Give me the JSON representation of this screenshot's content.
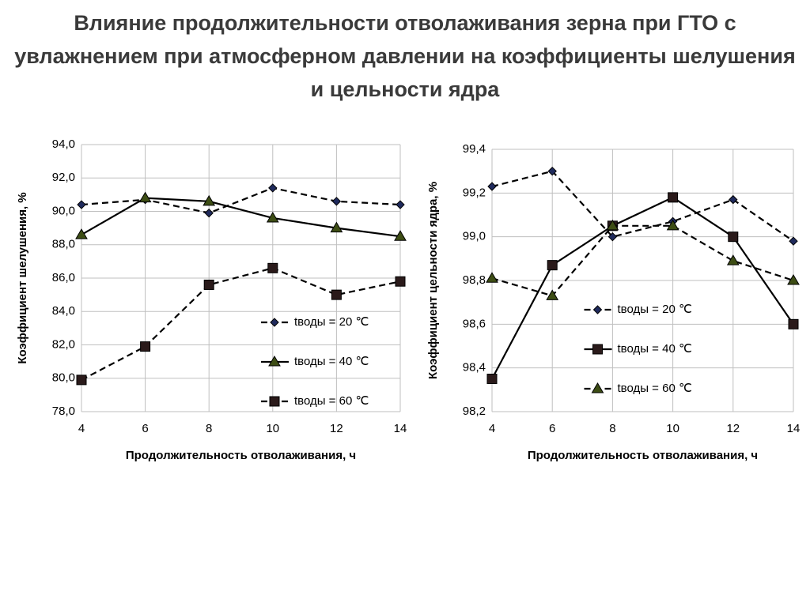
{
  "title": "Влияние продолжительности отволаживания зерна при ГТО с увлажнением при атмосферном давлении на коэффициенты шелушения и цельности ядра",
  "chart_data": [
    {
      "type": "line",
      "x_label": "Продолжительность отволаживания, ч",
      "y_label": "Коэффициент шелушения, %",
      "x": [
        4,
        6,
        8,
        10,
        12,
        14
      ],
      "xlim": [
        4,
        14
      ],
      "xticks": [
        4,
        6,
        8,
        10,
        12,
        14
      ],
      "ylim": [
        78,
        94
      ],
      "yticks": [
        {
          "value": 78,
          "label": "78,0"
        },
        {
          "value": 80,
          "label": "80,0"
        },
        {
          "value": 82,
          "label": "82,0"
        },
        {
          "value": 84,
          "label": "84,0"
        },
        {
          "value": 86,
          "label": "86,0"
        },
        {
          "value": 88,
          "label": "88,0"
        },
        {
          "value": 90,
          "label": "90,0"
        },
        {
          "value": 92,
          "label": "92,0"
        },
        {
          "value": 94,
          "label": "94,0"
        }
      ],
      "grid": true,
      "legend": "lower right",
      "series": [
        {
          "name": "tводы = 20 ℃",
          "color": "#1f2a5c",
          "marker": "diamond",
          "dashed": true,
          "values": [
            90.4,
            90.7,
            89.9,
            91.4,
            90.6,
            90.4
          ]
        },
        {
          "name": "tводы = 40 ℃",
          "color": "#3d4d14",
          "marker": "triangle",
          "dashed": false,
          "values": [
            88.6,
            90.8,
            90.6,
            89.6,
            89.0,
            88.5
          ]
        },
        {
          "name": "tводы = 60 ℃",
          "color": "#2a1a1a",
          "marker": "square",
          "dashed": true,
          "values": [
            79.9,
            81.9,
            85.6,
            86.6,
            85.0,
            85.8
          ]
        }
      ]
    },
    {
      "type": "line",
      "x_label": "Продолжительность отволаживания, ч",
      "y_label": "Коэффициент цельности ядра, %",
      "x": [
        4,
        6,
        8,
        10,
        12,
        14
      ],
      "xlim": [
        4,
        14
      ],
      "xticks": [
        4,
        6,
        8,
        10,
        12,
        14
      ],
      "ylim": [
        98.2,
        99.4
      ],
      "yticks": [
        {
          "value": 98.2,
          "label": "98,2"
        },
        {
          "value": 98.4,
          "label": "98,4"
        },
        {
          "value": 98.6,
          "label": "98,6"
        },
        {
          "value": 98.8,
          "label": "98,8"
        },
        {
          "value": 99.0,
          "label": "99,0"
        },
        {
          "value": 99.2,
          "label": "99,2"
        },
        {
          "value": 99.4,
          "label": "99,4"
        }
      ],
      "grid": true,
      "legend": "center",
      "series": [
        {
          "name": "tводы = 20 ℃",
          "color": "#1f2a5c",
          "marker": "diamond",
          "dashed": true,
          "values": [
            99.23,
            99.3,
            99.0,
            99.07,
            99.17,
            98.98
          ]
        },
        {
          "name": "tводы = 40 ℃",
          "color": "#2a1a1a",
          "marker": "square",
          "dashed": false,
          "values": [
            98.35,
            98.87,
            99.05,
            99.18,
            99.0,
            98.6
          ]
        },
        {
          "name": "tводы = 60 ℃",
          "color": "#3d4d14",
          "marker": "triangle",
          "dashed": true,
          "values": [
            98.81,
            98.73,
            99.05,
            99.05,
            98.89,
            98.8
          ]
        }
      ]
    }
  ]
}
